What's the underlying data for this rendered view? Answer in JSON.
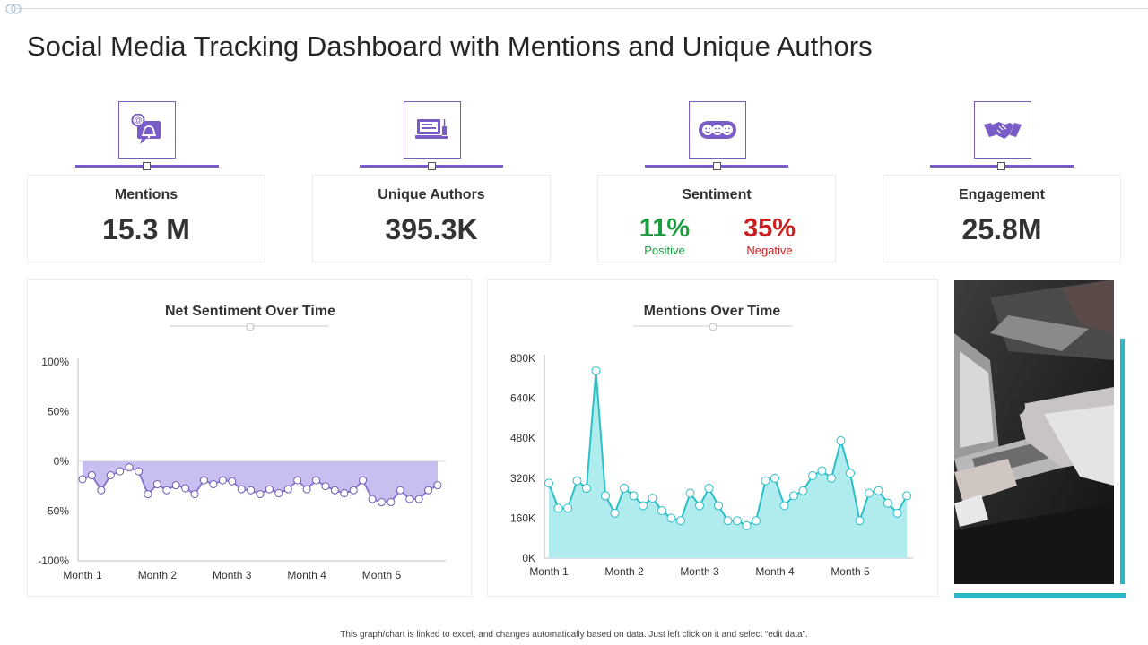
{
  "title": "Social Media Tracking Dashboard with Mentions and Unique Authors",
  "kpis": {
    "mentions": {
      "label": "Mentions",
      "value": "15.3 M",
      "icon": "mention-bell-icon"
    },
    "unique_authors": {
      "label": "Unique Authors",
      "value": "395.3K",
      "icon": "computer-user-icon"
    },
    "sentiment": {
      "label": "Sentiment",
      "positive_value": "11%",
      "positive_label": "Positive",
      "negative_value": "35%",
      "negative_label": "Negative",
      "icon": "emoji-faces-icon"
    },
    "engagement": {
      "label": "Engagement",
      "value": "25.8M",
      "icon": "handshake-icon"
    }
  },
  "colors": {
    "accent": "#7a5cc6",
    "sentiment_fill": "#c8bff0",
    "sentiment_line": "#8b76d2",
    "mentions_fill": "#b0ecee",
    "mentions_line": "#2bbfc8",
    "positive": "#1a9e3e",
    "negative": "#cc1f1f",
    "teal": "#2ab7c1"
  },
  "chart_data": [
    {
      "type": "area",
      "title": "Net Sentiment Over Time",
      "xlabel": "",
      "ylabel": "",
      "ylim": [
        -100,
        100
      ],
      "y_ticks": [
        "100%",
        "50%",
        "0%",
        "-50%",
        "-100%"
      ],
      "y_tick_values": [
        100,
        50,
        0,
        -50,
        -100
      ],
      "x_tick_labels": [
        "Month 1",
        "Month 2",
        "Month 3",
        "Month 4",
        "Month 5"
      ],
      "x_tick_indices": [
        0,
        8,
        16,
        24,
        32
      ],
      "series": [
        {
          "name": "Net Sentiment",
          "values": [
            -18,
            -14,
            -29,
            -14,
            -10,
            -6,
            -10,
            -33,
            -23,
            -29,
            -24,
            -27,
            -33,
            -19,
            -23,
            -19,
            -20,
            -28,
            -29,
            -33,
            -28,
            -32,
            -28,
            -19,
            -28,
            -19,
            -25,
            -29,
            -32,
            -29,
            -19,
            -38,
            -41,
            -41,
            -29,
            -38,
            -38,
            -29,
            -24
          ]
        }
      ]
    },
    {
      "type": "area",
      "title": "Mentions Over Time",
      "xlabel": "",
      "ylabel": "",
      "ylim": [
        0,
        800
      ],
      "y_ticks": [
        "800K",
        "640K",
        "480K",
        "320K",
        "160K",
        "0K"
      ],
      "y_tick_values": [
        800,
        640,
        480,
        320,
        160,
        0
      ],
      "x_tick_labels": [
        "Month 1",
        "Month 2",
        "Month 3",
        "Month 4",
        "Month 5"
      ],
      "x_tick_indices": [
        0,
        8,
        16,
        24,
        32
      ],
      "series": [
        {
          "name": "Mentions (K)",
          "values": [
            300,
            200,
            200,
            310,
            280,
            750,
            250,
            180,
            280,
            250,
            210,
            240,
            190,
            160,
            150,
            260,
            210,
            280,
            210,
            150,
            150,
            130,
            150,
            310,
            320,
            210,
            250,
            270,
            330,
            350,
            320,
            470,
            340,
            150,
            260,
            270,
            220,
            180,
            250
          ]
        }
      ]
    }
  ],
  "footer": "This graph/chart is linked to excel, and changes automatically based on data. Just left click on it and select “edit data”."
}
